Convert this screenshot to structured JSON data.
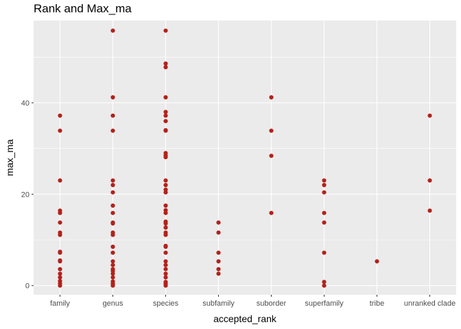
{
  "title": "Rank and Max_ma",
  "chart_data": {
    "type": "scatter",
    "title": "Rank and Max_ma",
    "xlabel": "accepted_rank",
    "ylabel": "max_ma",
    "categories": [
      "family",
      "genus",
      "species",
      "subfamily",
      "suborder",
      "superfamily",
      "tribe",
      "unranked clade"
    ],
    "yticks": [
      0,
      20,
      40
    ],
    "ylim": [
      -2,
      58
    ],
    "grid": true,
    "point_color": "#B2221B",
    "panel_color": "#EBEBEB",
    "points": [
      {
        "x": "family",
        "y": [
          0.0,
          0.5,
          1.0,
          1.8,
          2.6,
          3.6,
          5.3,
          5.5,
          7.2,
          7.4,
          11.1,
          11.6,
          13.8,
          15.9,
          16.4,
          23.0,
          33.9,
          37.2
        ]
      },
      {
        "x": "genus",
        "y": [
          0.0,
          0.4,
          0.9,
          1.8,
          2.6,
          3.2,
          3.6,
          4.5,
          5.3,
          7.2,
          8.5,
          11.1,
          11.6,
          13.6,
          13.8,
          15.9,
          17.5,
          20.4,
          22.0,
          23.0,
          33.9,
          37.2,
          41.2,
          55.8
        ]
      },
      {
        "x": "species",
        "y": [
          0.0,
          0.4,
          0.8,
          1.8,
          2.6,
          3.6,
          4.5,
          5.3,
          7.2,
          8.5,
          8.7,
          11.1,
          11.6,
          12.7,
          13.6,
          14.0,
          15.9,
          16.5,
          17.5,
          20.4,
          21.0,
          22.0,
          23.0,
          28.1,
          28.5,
          29.0,
          33.9,
          34.0,
          36.0,
          37.2,
          38.0,
          41.2,
          47.8,
          48.6,
          55.8
        ]
      },
      {
        "x": "subfamily",
        "y": [
          2.6,
          3.6,
          5.3,
          7.2,
          11.6,
          13.8
        ]
      },
      {
        "x": "suborder",
        "y": [
          15.9,
          28.4,
          33.9,
          41.2
        ]
      },
      {
        "x": "superfamily",
        "y": [
          0.0,
          0.8,
          7.2,
          13.8,
          15.9,
          20.4,
          22.0,
          23.0
        ]
      },
      {
        "x": "tribe",
        "y": [
          5.3
        ]
      },
      {
        "x": "unranked clade",
        "y": [
          16.4,
          23.0,
          37.2
        ]
      }
    ]
  }
}
